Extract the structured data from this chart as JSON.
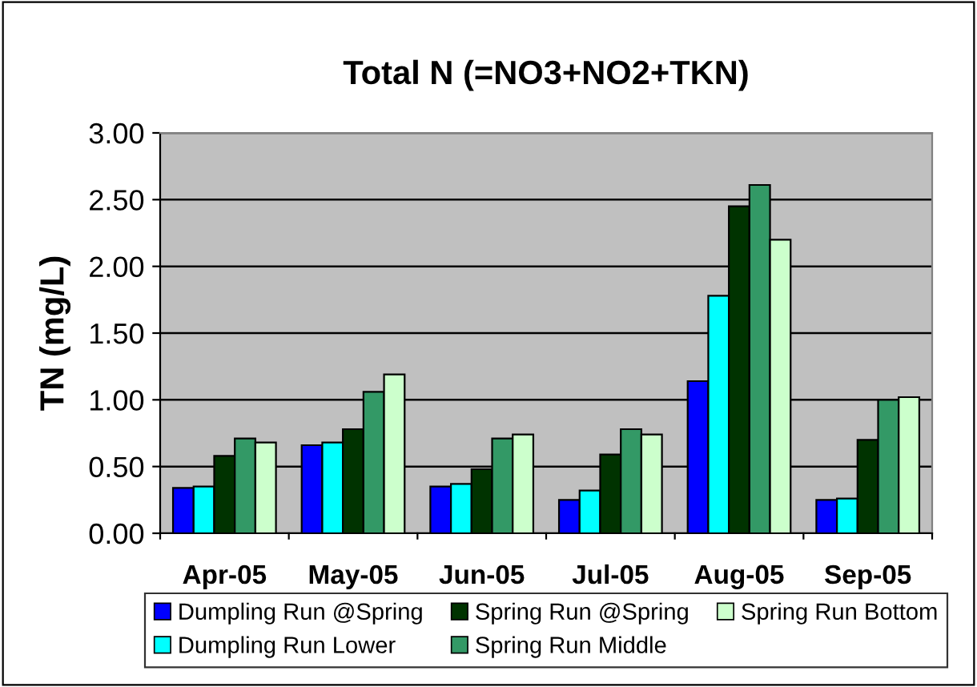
{
  "chart_data": {
    "type": "bar",
    "title": "Total N (=NO3+NO2+TKN)",
    "ylabel": "TN (mg/L)",
    "categories": [
      "Apr-05",
      "May-05",
      "Jun-05",
      "Jul-05",
      "Aug-05",
      "Sep-05"
    ],
    "series": [
      {
        "name": "Dumpling Run @Spring",
        "color": "#0000ff",
        "values": [
          0.34,
          0.66,
          0.35,
          0.25,
          1.14,
          0.25
        ]
      },
      {
        "name": "Dumpling Run Lower",
        "color": "#00ffff",
        "values": [
          0.35,
          0.68,
          0.37,
          0.32,
          1.78,
          0.26
        ]
      },
      {
        "name": "Spring Run @Spring",
        "color": "#003300",
        "values": [
          0.58,
          0.78,
          0.48,
          0.59,
          2.45,
          0.7
        ]
      },
      {
        "name": "Spring Run Middle",
        "color": "#339966",
        "values": [
          0.71,
          1.06,
          0.71,
          0.78,
          2.61,
          1.0
        ]
      },
      {
        "name": "Spring Run Bottom",
        "color": "#ccffcc",
        "values": [
          0.68,
          1.19,
          0.74,
          0.74,
          2.2,
          1.02
        ]
      }
    ],
    "ylim": [
      0,
      3
    ],
    "yticks": [
      {
        "value": 0,
        "label": "0.00"
      },
      {
        "value": 0.5,
        "label": "0.50"
      },
      {
        "value": 1,
        "label": "1.00"
      },
      {
        "value": 1.5,
        "label": "1.50"
      },
      {
        "value": 2,
        "label": "2.00"
      },
      {
        "value": 2.5,
        "label": "2.50"
      },
      {
        "value": 3,
        "label": "3.00"
      }
    ],
    "grid": "y",
    "legend": "bottom"
  }
}
